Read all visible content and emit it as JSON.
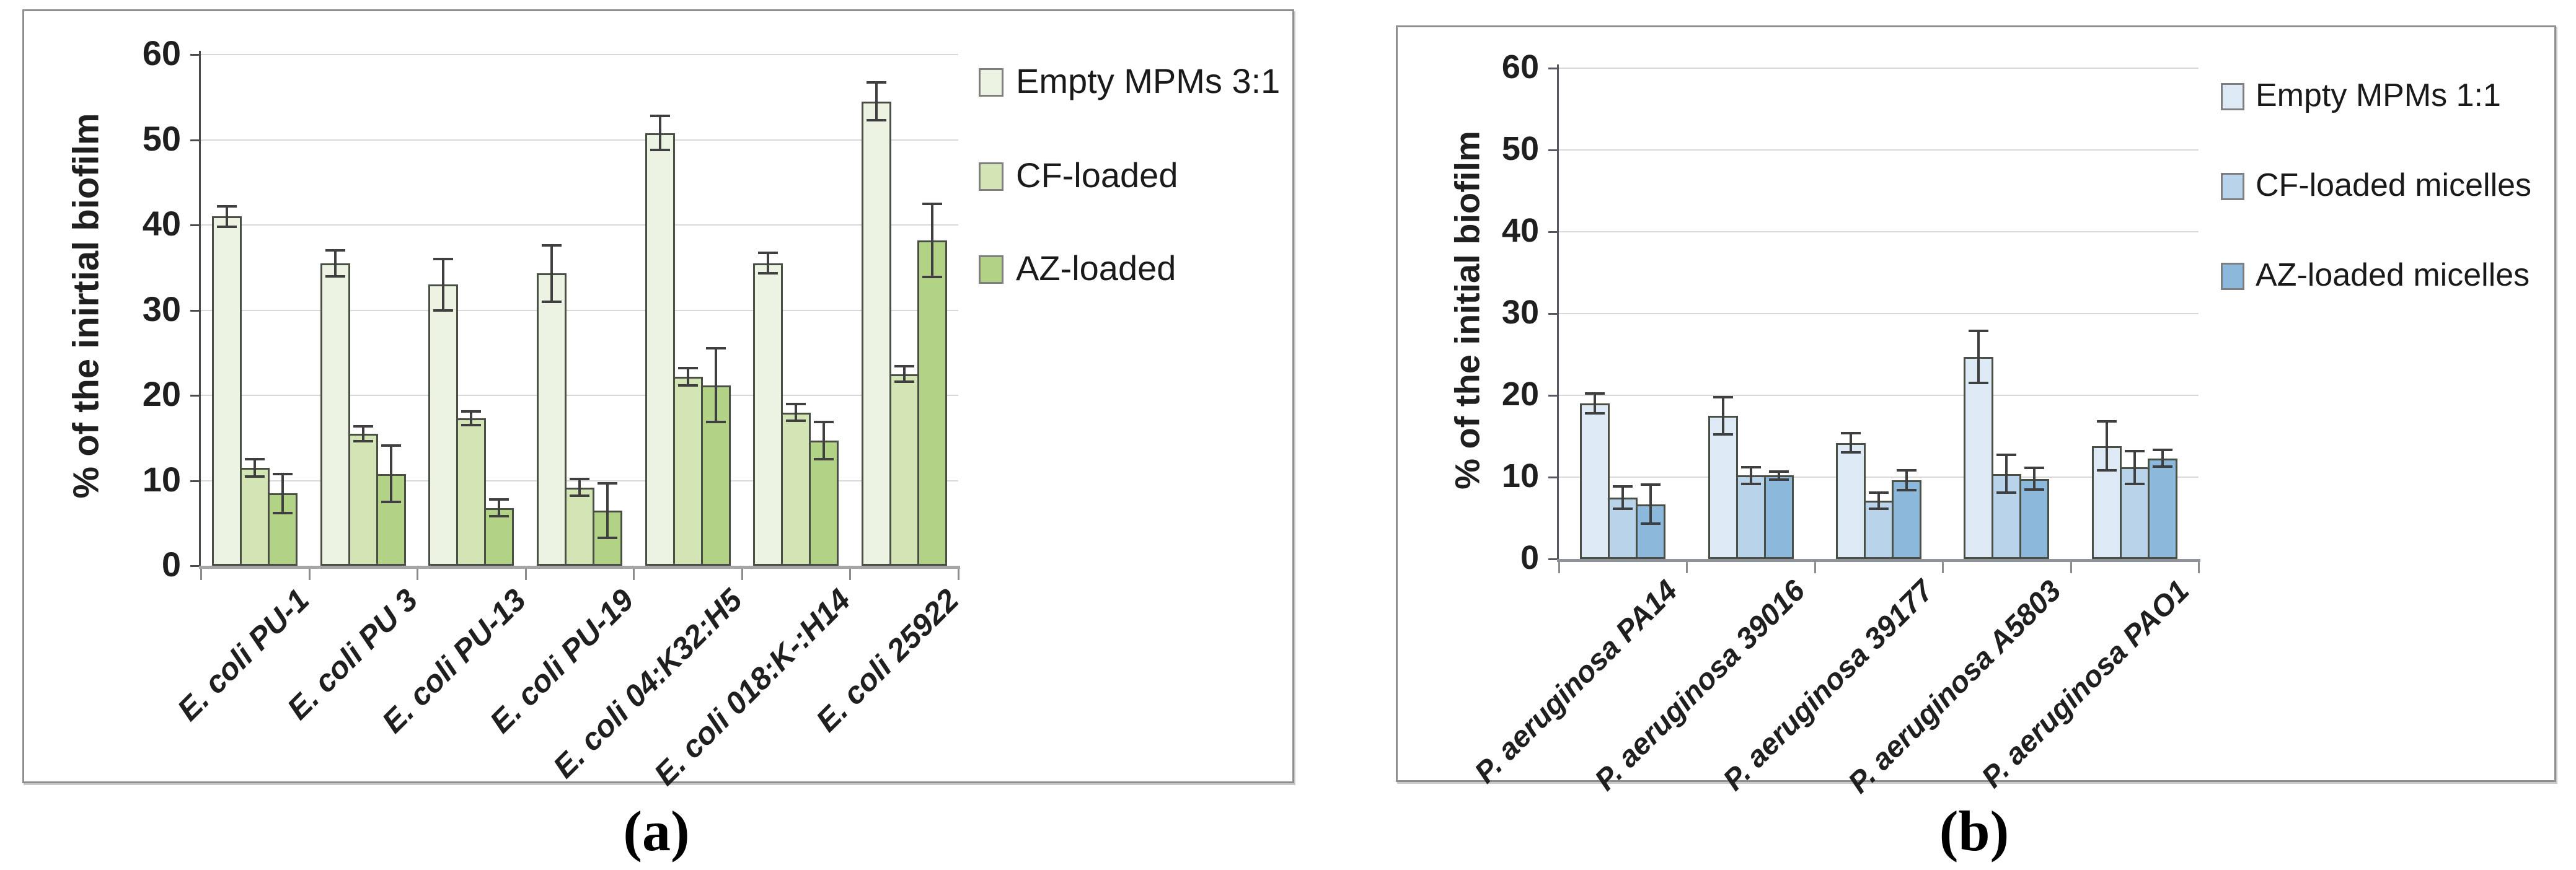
{
  "figure": {
    "panels": [
      {
        "caption": "(a)"
      },
      {
        "caption": "(b)"
      }
    ]
  },
  "chart_data": [
    {
      "type": "bar",
      "panel": "a",
      "title": "",
      "xlabel": "",
      "ylabel": "% of the inirtial biofilm",
      "ylim": [
        0,
        60
      ],
      "ytick_step": 10,
      "grid": true,
      "legend_position": "right",
      "categories": [
        "E. coli PU-1",
        "E. coli PU 3",
        "E. coli PU-13",
        "E. coli PU-19",
        "E. coli 04:K32:H5",
        "E. coli 018:K-:H14",
        "E. coli 25922"
      ],
      "series": [
        {
          "name": "Empty MPMs 3:1",
          "color": "#edf3e3",
          "values": [
            41.0,
            35.5,
            33.0,
            34.3,
            50.8,
            35.5,
            54.5
          ],
          "errors": [
            1.2,
            1.5,
            3.0,
            3.3,
            2.0,
            1.2,
            2.2
          ]
        },
        {
          "name": "CF-loaded",
          "color": "#d4e5b5",
          "values": [
            11.5,
            15.5,
            17.3,
            9.2,
            22.2,
            18.0,
            22.5
          ],
          "errors": [
            1.0,
            0.9,
            0.8,
            1.0,
            1.0,
            1.0,
            0.9
          ]
        },
        {
          "name": "AZ-loaded",
          "color": "#b2d386",
          "values": [
            8.5,
            10.8,
            6.8,
            6.5,
            21.2,
            14.7,
            38.2
          ],
          "errors": [
            2.3,
            3.3,
            1.0,
            3.2,
            4.3,
            2.2,
            4.3
          ]
        }
      ]
    },
    {
      "type": "bar",
      "panel": "b",
      "title": "",
      "xlabel": "",
      "ylabel": "% of the initial biofilm",
      "ylim": [
        0,
        60
      ],
      "ytick_step": 10,
      "grid": true,
      "legend_position": "right",
      "categories": [
        "P. aeruginosa PA14",
        "P. aeruginosa 39016",
        "P. aeruginosa 39177",
        "P. aeruginosa A5803",
        "P. aeruginosa PAO1"
      ],
      "series": [
        {
          "name": "Empty MPMs 1:1",
          "color": "#dde9f5",
          "values": [
            19.0,
            17.5,
            14.2,
            24.7,
            13.8
          ],
          "errors": [
            1.2,
            2.3,
            1.2,
            3.2,
            3.0
          ]
        },
        {
          "name": "CF-loaded micelles",
          "color": "#b9d3ea",
          "values": [
            7.5,
            10.2,
            7.1,
            10.4,
            11.2
          ],
          "errors": [
            1.4,
            1.0,
            1.0,
            2.3,
            2.0
          ]
        },
        {
          "name": "AZ-loaded micelles",
          "color": "#8cb8dc",
          "values": [
            6.7,
            10.2,
            9.6,
            9.8,
            12.3
          ],
          "errors": [
            2.4,
            0.5,
            1.2,
            1.3,
            1.0
          ]
        }
      ]
    }
  ]
}
